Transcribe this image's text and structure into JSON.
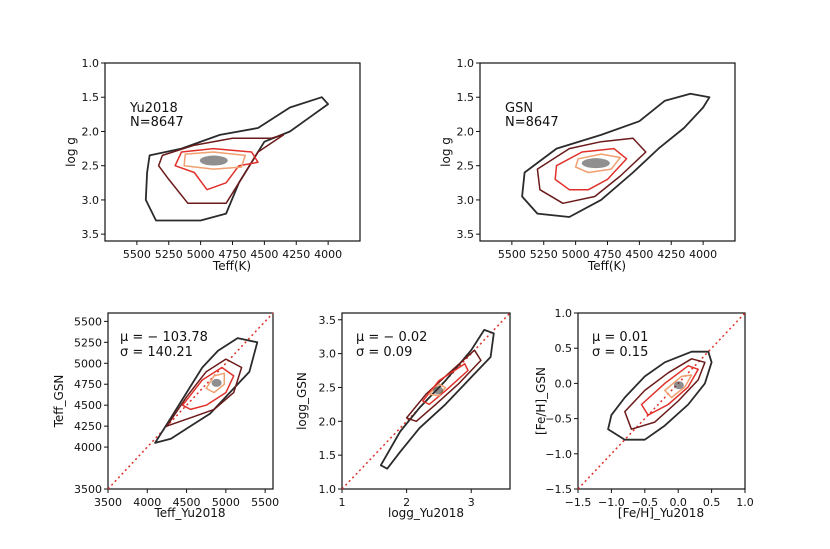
{
  "chart_data": [
    {
      "type": "contour",
      "id": "hr-yu",
      "xlabel": "Teff(K)",
      "ylabel": "log g",
      "xlim": [
        5750,
        3750
      ],
      "ylim": [
        3.6,
        1.0
      ],
      "xticks": [
        5500,
        5250,
        5000,
        4750,
        4500,
        4250,
        4000
      ],
      "yticks": [
        1.0,
        1.5,
        2.0,
        2.5,
        3.0,
        3.5
      ],
      "tick_labels_x": [
        "5500",
        "5250",
        "5000",
        "4750",
        "4500",
        "4250",
        "4000"
      ],
      "tick_labels_y": [
        "1.0",
        "1.5",
        "2.0",
        "2.5",
        "3.0",
        "3.5"
      ],
      "annotation": [
        "Yu2018",
        "N=8647"
      ],
      "contours": [
        {
          "level": "outer",
          "color": "#2b2b2b",
          "points": [
            [
              5400,
              2.35
            ],
            [
              5150,
              2.25
            ],
            [
              4850,
              2.05
            ],
            [
              4550,
              1.95
            ],
            [
              4300,
              1.65
            ],
            [
              4050,
              1.5
            ],
            [
              4000,
              1.6
            ],
            [
              4150,
              1.8
            ],
            [
              4300,
              2.0
            ],
            [
              4500,
              2.15
            ],
            [
              4600,
              2.45
            ],
            [
              4700,
              2.75
            ],
            [
              4800,
              3.2
            ],
            [
              5000,
              3.3
            ],
            [
              5350,
              3.3
            ],
            [
              5430,
              3.0
            ],
            [
              5420,
              2.6
            ]
          ]
        },
        {
          "level": "mid",
          "color": "#6b1a1a",
          "points": [
            [
              5300,
              2.35
            ],
            [
              5050,
              2.2
            ],
            [
              4750,
              2.1
            ],
            [
              4450,
              2.1
            ],
            [
              4350,
              2.05
            ],
            [
              4550,
              2.3
            ],
            [
              4650,
              2.6
            ],
            [
              4800,
              3.05
            ],
            [
              5100,
              3.05
            ],
            [
              5250,
              2.7
            ],
            [
              5330,
              2.5
            ]
          ]
        },
        {
          "level": "inner",
          "color": "#e0302a",
          "points": [
            [
              5150,
              2.3
            ],
            [
              4900,
              2.25
            ],
            [
              4600,
              2.3
            ],
            [
              4550,
              2.45
            ],
            [
              4700,
              2.5
            ],
            [
              4800,
              2.75
            ],
            [
              4950,
              2.85
            ],
            [
              5050,
              2.6
            ],
            [
              5200,
              2.5
            ]
          ]
        },
        {
          "level": "core",
          "color": "#f0a070",
          "points": [
            [
              5120,
              2.33
            ],
            [
              4900,
              2.3
            ],
            [
              4650,
              2.35
            ],
            [
              4680,
              2.52
            ],
            [
              4900,
              2.55
            ],
            [
              5130,
              2.5
            ]
          ]
        }
      ]
    },
    {
      "type": "contour",
      "id": "hr-gsn",
      "xlabel": "Teff(K)",
      "ylabel": "log g",
      "xlim": [
        5750,
        3750
      ],
      "ylim": [
        3.6,
        1.0
      ],
      "xticks": [
        5500,
        5250,
        5000,
        4750,
        4500,
        4250,
        4000
      ],
      "yticks": [
        1.0,
        1.5,
        2.0,
        2.5,
        3.0,
        3.5
      ],
      "tick_labels_x": [
        "5500",
        "5250",
        "5000",
        "4750",
        "4500",
        "4250",
        "4000"
      ],
      "tick_labels_y": [
        "1.0",
        "1.5",
        "2.0",
        "2.5",
        "3.0",
        "3.5"
      ],
      "annotation": [
        "GSN",
        "N=8647"
      ],
      "contours": [
        {
          "level": "outer",
          "color": "#2b2b2b",
          "points": [
            [
              5400,
              2.6
            ],
            [
              5150,
              2.25
            ],
            [
              4800,
              2.05
            ],
            [
              4500,
              1.85
            ],
            [
              4300,
              1.55
            ],
            [
              4100,
              1.45
            ],
            [
              3950,
              1.5
            ],
            [
              4000,
              1.65
            ],
            [
              4150,
              1.95
            ],
            [
              4350,
              2.25
            ],
            [
              4550,
              2.6
            ],
            [
              4800,
              3.0
            ],
            [
              5050,
              3.25
            ],
            [
              5300,
              3.2
            ],
            [
              5420,
              2.95
            ]
          ]
        },
        {
          "level": "mid",
          "color": "#6b1a1a",
          "points": [
            [
              5300,
              2.55
            ],
            [
              5050,
              2.25
            ],
            [
              4800,
              2.15
            ],
            [
              4550,
              2.1
            ],
            [
              4450,
              2.3
            ],
            [
              4650,
              2.65
            ],
            [
              4850,
              2.95
            ],
            [
              5100,
              3.05
            ],
            [
              5280,
              2.85
            ]
          ]
        },
        {
          "level": "inner",
          "color": "#e0302a",
          "points": [
            [
              5150,
              2.5
            ],
            [
              4950,
              2.3
            ],
            [
              4700,
              2.25
            ],
            [
              4600,
              2.4
            ],
            [
              4750,
              2.7
            ],
            [
              4900,
              2.85
            ],
            [
              5050,
              2.85
            ],
            [
              5160,
              2.7
            ]
          ]
        },
        {
          "level": "core",
          "color": "#f0a070",
          "points": [
            [
              4980,
              2.4
            ],
            [
              4800,
              2.33
            ],
            [
              4650,
              2.38
            ],
            [
              4720,
              2.55
            ],
            [
              4900,
              2.6
            ],
            [
              5000,
              2.52
            ]
          ]
        }
      ]
    },
    {
      "type": "contour",
      "id": "teff-cmp",
      "xlabel": "Teff_Yu2018",
      "ylabel": "Teff_GSN",
      "xlim": [
        3500,
        5600
      ],
      "ylim": [
        3500,
        5600
      ],
      "xticks": [
        3500,
        4000,
        4500,
        5000,
        5500
      ],
      "yticks": [
        3500,
        4000,
        4250,
        4500,
        4750,
        5000,
        5250,
        5500
      ],
      "tick_labels_x": [
        "3500",
        "4000",
        "4500",
        "5000",
        "5500"
      ],
      "tick_labels_y": [
        "3500",
        "4000",
        "4250",
        "4500",
        "4750",
        "5000",
        "5250",
        "5500"
      ],
      "annotation": [
        "μ = − 103.78",
        "σ = 140.21"
      ],
      "contours": [
        {
          "level": "outer",
          "color": "#2b2b2b",
          "points": [
            [
              4100,
              4050
            ],
            [
              4300,
              4350
            ],
            [
              4500,
              4650
            ],
            [
              4700,
              4950
            ],
            [
              4900,
              5150
            ],
            [
              5150,
              5300
            ],
            [
              5400,
              5250
            ],
            [
              5300,
              4900
            ],
            [
              5050,
              4650
            ],
            [
              4800,
              4400
            ],
            [
              4550,
              4250
            ],
            [
              4300,
              4100
            ]
          ]
        },
        {
          "level": "mid",
          "color": "#6b1a1a",
          "points": [
            [
              4250,
              4250
            ],
            [
              4500,
              4600
            ],
            [
              4750,
              4900
            ],
            [
              5000,
              5050
            ],
            [
              5200,
              4950
            ],
            [
              5100,
              4650
            ],
            [
              4850,
              4450
            ],
            [
              4550,
              4350
            ]
          ]
        },
        {
          "level": "inner",
          "color": "#e0302a",
          "points": [
            [
              4450,
              4500
            ],
            [
              4700,
              4800
            ],
            [
              4950,
              4950
            ],
            [
              5100,
              4850
            ],
            [
              5000,
              4650
            ],
            [
              4750,
              4500
            ],
            [
              4550,
              4450
            ]
          ]
        },
        {
          "level": "core",
          "color": "#f0a070",
          "points": [
            [
              4750,
              4700
            ],
            [
              4850,
              4850
            ],
            [
              4980,
              4880
            ],
            [
              4980,
              4750
            ],
            [
              4850,
              4650
            ]
          ]
        }
      ]
    },
    {
      "type": "contour",
      "id": "logg-cmp",
      "xlabel": "logg_Yu2018",
      "ylabel": "logg_GSN",
      "xlim": [
        1.0,
        3.6
      ],
      "ylim": [
        1.0,
        3.6
      ],
      "xticks": [
        1,
        2,
        3
      ],
      "yticks": [
        1.0,
        1.5,
        2.0,
        2.5,
        3.0,
        3.5
      ],
      "tick_labels_x": [
        "1",
        "2",
        "3"
      ],
      "tick_labels_y": [
        "1.0",
        "1.5",
        "2.0",
        "2.5",
        "3.0",
        "3.5"
      ],
      "annotation": [
        "μ = − 0.02",
        "σ = 0.09"
      ],
      "contours": [
        {
          "level": "outer",
          "color": "#2b2b2b",
          "points": [
            [
              1.6,
              1.35
            ],
            [
              1.9,
              1.85
            ],
            [
              2.2,
              2.2
            ],
            [
              2.6,
              2.6
            ],
            [
              3.0,
              3.05
            ],
            [
              3.2,
              3.35
            ],
            [
              3.35,
              3.3
            ],
            [
              3.3,
              2.95
            ],
            [
              3.0,
              2.65
            ],
            [
              2.6,
              2.25
            ],
            [
              2.2,
              1.9
            ],
            [
              1.9,
              1.55
            ],
            [
              1.7,
              1.3
            ]
          ]
        },
        {
          "level": "mid",
          "color": "#6b1a1a",
          "points": [
            [
              2.0,
              2.05
            ],
            [
              2.3,
              2.4
            ],
            [
              2.7,
              2.75
            ],
            [
              3.05,
              3.05
            ],
            [
              3.15,
              2.9
            ],
            [
              2.8,
              2.55
            ],
            [
              2.45,
              2.25
            ],
            [
              2.15,
              2.0
            ]
          ]
        },
        {
          "level": "inner",
          "color": "#e0302a",
          "points": [
            [
              2.25,
              2.3
            ],
            [
              2.5,
              2.6
            ],
            [
              2.9,
              2.85
            ],
            [
              2.95,
              2.75
            ],
            [
              2.6,
              2.45
            ],
            [
              2.35,
              2.25
            ]
          ]
        },
        {
          "level": "core",
          "color": "#f0a070",
          "points": [
            [
              2.35,
              2.4
            ],
            [
              2.5,
              2.55
            ],
            [
              2.6,
              2.5
            ],
            [
              2.5,
              2.38
            ]
          ]
        }
      ]
    },
    {
      "type": "contour",
      "id": "feh-cmp",
      "xlabel": "[Fe/H]_Yu2018",
      "ylabel": "[Fe/H]_GSN",
      "xlim": [
        -1.5,
        1.0
      ],
      "ylim": [
        -1.5,
        1.0
      ],
      "xticks": [
        -1.5,
        -1.0,
        -0.5,
        0.0,
        0.5,
        1.0
      ],
      "yticks": [
        -1.5,
        -1.0,
        -0.5,
        0.0,
        0.5,
        1.0
      ],
      "tick_labels_x": [
        "−1.5",
        "−1.0",
        "−0.5",
        "0.0",
        "0.5",
        "1.0"
      ],
      "tick_labels_y": [
        "−1.5",
        "−1.0",
        "−0.5",
        "0.0",
        "0.5",
        "1.0"
      ],
      "annotation": [
        "μ = 0.01",
        "σ = 0.15"
      ],
      "contours": [
        {
          "level": "outer",
          "color": "#2b2b2b",
          "points": [
            [
              -1.0,
              -0.45
            ],
            [
              -0.8,
              -0.2
            ],
            [
              -0.5,
              0.1
            ],
            [
              -0.2,
              0.3
            ],
            [
              0.2,
              0.45
            ],
            [
              0.45,
              0.45
            ],
            [
              0.5,
              0.3
            ],
            [
              0.4,
              0.0
            ],
            [
              0.15,
              -0.3
            ],
            [
              -0.2,
              -0.6
            ],
            [
              -0.5,
              -0.8
            ],
            [
              -0.8,
              -0.8
            ],
            [
              -1.05,
              -0.65
            ]
          ]
        },
        {
          "level": "mid",
          "color": "#6b1a1a",
          "points": [
            [
              -0.8,
              -0.4
            ],
            [
              -0.5,
              -0.1
            ],
            [
              -0.15,
              0.15
            ],
            [
              0.2,
              0.35
            ],
            [
              0.4,
              0.3
            ],
            [
              0.3,
              0.05
            ],
            [
              0.0,
              -0.25
            ],
            [
              -0.35,
              -0.55
            ],
            [
              -0.7,
              -0.65
            ]
          ]
        },
        {
          "level": "inner",
          "color": "#e0302a",
          "points": [
            [
              -0.55,
              -0.3
            ],
            [
              -0.2,
              0.0
            ],
            [
              0.15,
              0.25
            ],
            [
              0.3,
              0.2
            ],
            [
              0.15,
              -0.05
            ],
            [
              -0.15,
              -0.3
            ],
            [
              -0.45,
              -0.45
            ]
          ]
        },
        {
          "level": "core",
          "color": "#f0a070",
          "points": [
            [
              -0.2,
              -0.1
            ],
            [
              0.05,
              0.1
            ],
            [
              0.2,
              0.12
            ],
            [
              0.1,
              -0.05
            ],
            [
              -0.1,
              -0.2
            ]
          ]
        }
      ]
    }
  ]
}
